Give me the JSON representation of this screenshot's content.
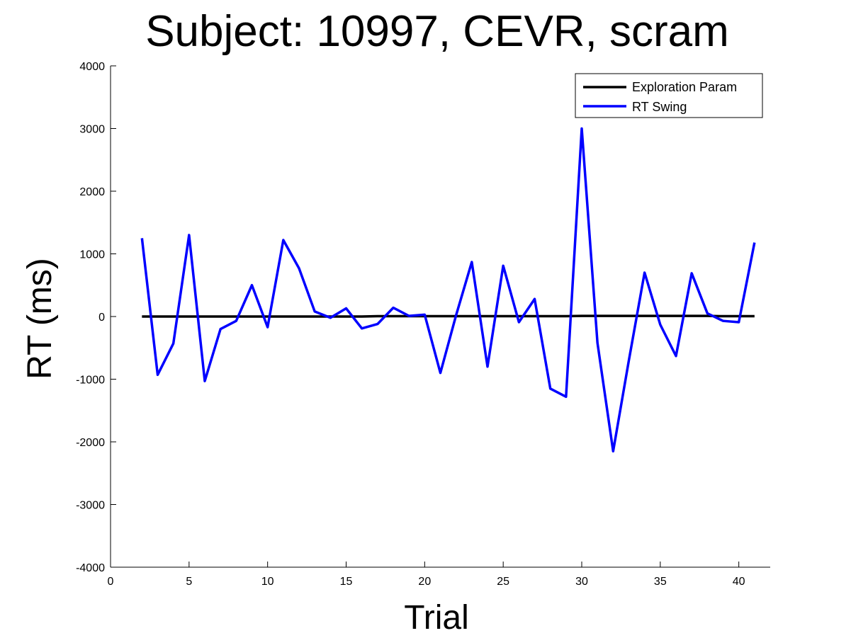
{
  "chart_data": {
    "type": "line",
    "title": "Subject: 10997, CEVR, scram",
    "xlabel": "Trial",
    "ylabel": "RT (ms)",
    "xlim": [
      0,
      42
    ],
    "ylim": [
      -4000,
      4000
    ],
    "xticks": [
      0,
      5,
      10,
      15,
      20,
      25,
      30,
      35,
      40
    ],
    "yticks": [
      -4000,
      -3000,
      -2000,
      -1000,
      0,
      1000,
      2000,
      3000,
      4000
    ],
    "grid": false,
    "legend_position": "top-right",
    "x": [
      2,
      3,
      4,
      5,
      6,
      7,
      8,
      9,
      10,
      11,
      12,
      13,
      14,
      15,
      16,
      17,
      18,
      19,
      20,
      21,
      22,
      23,
      24,
      25,
      26,
      27,
      28,
      29,
      30,
      31,
      32,
      33,
      34,
      35,
      36,
      37,
      38,
      39,
      40,
      41
    ],
    "series": [
      {
        "name": "Exploration Param",
        "color": "#000000",
        "values": [
          0,
          0,
          0,
          0,
          0,
          0,
          0,
          0,
          0,
          0,
          0,
          0,
          0,
          0,
          0,
          5,
          5,
          5,
          5,
          5,
          5,
          5,
          5,
          5,
          5,
          5,
          5,
          5,
          10,
          10,
          10,
          10,
          10,
          10,
          10,
          10,
          10,
          5,
          5,
          5
        ]
      },
      {
        "name": "RT Swing",
        "color": "#0000ff",
        "values": [
          1250,
          -930,
          -430,
          1300,
          -1030,
          -200,
          -70,
          500,
          -170,
          1220,
          770,
          80,
          -20,
          130,
          -190,
          -120,
          140,
          10,
          30,
          -900,
          20,
          870,
          -800,
          810,
          -90,
          280,
          -1150,
          -1280,
          3000,
          -420,
          -2150,
          -700,
          700,
          -130,
          -630,
          690,
          50,
          -70,
          -90,
          1180
        ]
      }
    ]
  }
}
